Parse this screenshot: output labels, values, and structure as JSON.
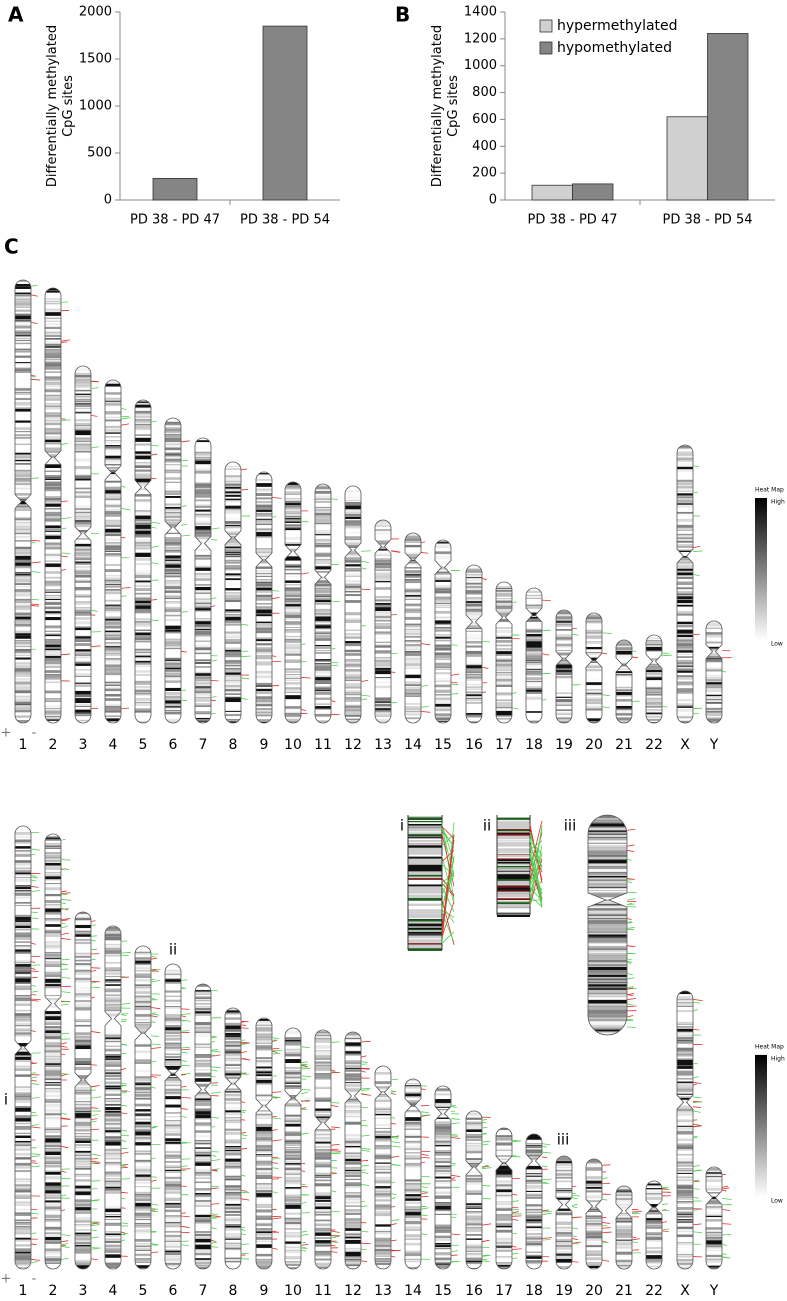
{
  "chart_data": [
    {
      "type": "bar",
      "ylabel": [
        "Differentially methylated",
        "CpG sites"
      ],
      "categories": [
        "PD 38 - PD 47",
        "PD 38 - PD 54"
      ],
      "values": [
        230,
        1850
      ],
      "color": "#858585",
      "ylim": [
        0,
        2000
      ],
      "yticks": [
        0,
        500,
        1000,
        1500,
        2000
      ]
    },
    {
      "type": "bar",
      "ylabel": [
        "Differentially methylated",
        "CpG sites"
      ],
      "categories": [
        "PD 38 - PD 47",
        "PD 38 - PD 54"
      ],
      "series": [
        {
          "name": "hypermethylated",
          "color": "#d0d0d0",
          "values": [
            110,
            620
          ]
        },
        {
          "name": "hypomethylated",
          "color": "#858585",
          "values": [
            120,
            1240
          ]
        }
      ],
      "ylim": [
        0,
        1400
      ],
      "yticks": [
        0,
        200,
        400,
        600,
        800,
        1000,
        1200,
        1400
      ],
      "legend": "upper-left"
    }
  ],
  "figure": {
    "panel_labels": [
      "A",
      "B",
      "C"
    ],
    "chromosomes": [
      "1",
      "2",
      "3",
      "4",
      "5",
      "6",
      "7",
      "8",
      "9",
      "10",
      "11",
      "12",
      "13",
      "14",
      "15",
      "16",
      "17",
      "18",
      "19",
      "20",
      "21",
      "22",
      "X",
      "Y"
    ],
    "strand_labels": [
      "+",
      "-"
    ],
    "heatmap": {
      "title": "Heat Map",
      "high": "High",
      "low": "Low"
    },
    "insets": [
      "i",
      "ii",
      "iii"
    ]
  }
}
